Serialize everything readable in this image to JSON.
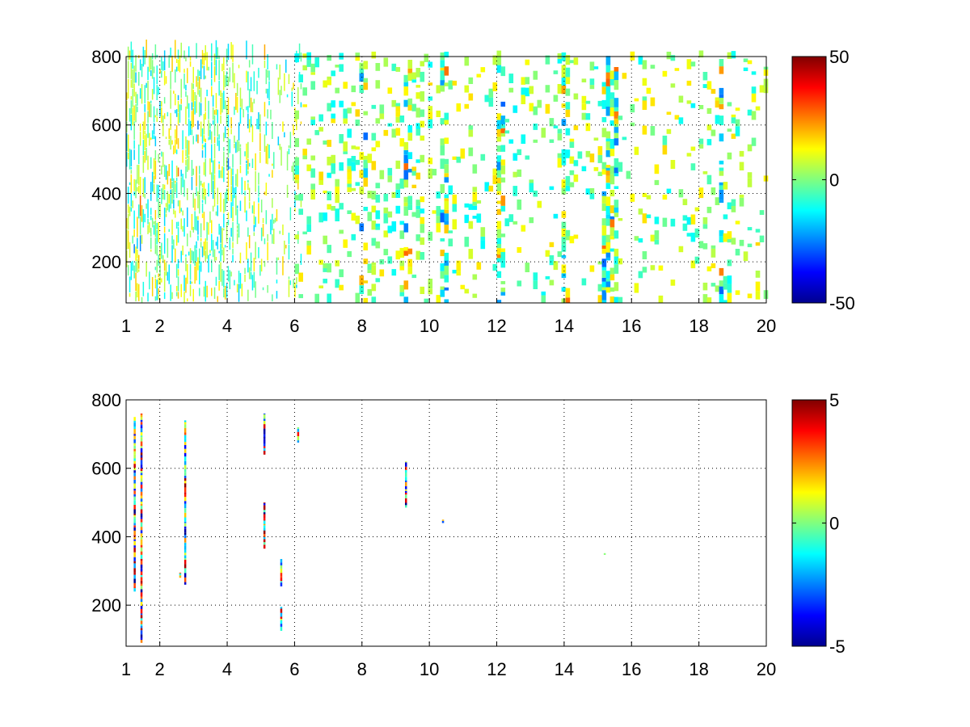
{
  "chart_data": [
    {
      "type": "heatmap",
      "title": "",
      "xlabel": "",
      "ylabel": "",
      "xlim": [
        1,
        20
      ],
      "ylim": [
        80,
        800
      ],
      "xticks": [
        1,
        2,
        4,
        6,
        8,
        10,
        12,
        14,
        16,
        18,
        20
      ],
      "xtick_labels": [
        "1",
        "2",
        "4",
        "6",
        "8",
        "10",
        "12",
        "14",
        "16",
        "18",
        "20"
      ],
      "yticks": [
        200,
        400,
        600,
        800
      ],
      "ytick_labels": [
        "200",
        "400",
        "600",
        "800"
      ],
      "grid": true,
      "colormap": "jet",
      "clim": [
        -50,
        50
      ],
      "colorbar_ticks": [
        -50,
        0,
        50
      ],
      "colorbar_labels": [
        "-50",
        "0",
        "50"
      ],
      "density": "dense",
      "columns": [
        {
          "x": 1.2,
          "density": 0.55,
          "strength": 0.35
        },
        {
          "x": 1.45,
          "density": 0.6,
          "strength": 0.4
        },
        {
          "x": 2.5,
          "density": 0.45,
          "strength": 0.35
        },
        {
          "x": 3.1,
          "density": 0.5,
          "strength": 0.4
        },
        {
          "x": 4.05,
          "density": 0.45,
          "strength": 0.3
        },
        {
          "x": 5.1,
          "density": 0.45,
          "strength": 0.5
        },
        {
          "x": 5.6,
          "density": 0.35,
          "strength": 0.3
        },
        {
          "x": 8.0,
          "density": 0.4,
          "strength": 0.3
        },
        {
          "x": 9.3,
          "density": 0.45,
          "strength": 0.55
        },
        {
          "x": 10.4,
          "density": 0.5,
          "strength": 0.35
        },
        {
          "x": 12.05,
          "density": 0.5,
          "strength": 0.35
        },
        {
          "x": 14.0,
          "density": 0.45,
          "strength": 0.3
        },
        {
          "x": 15.2,
          "density": 0.6,
          "strength": 0.45
        },
        {
          "x": 15.4,
          "density": 0.55,
          "strength": 0.4
        },
        {
          "x": 18.6,
          "density": 0.45,
          "strength": 0.3
        }
      ]
    },
    {
      "type": "heatmap",
      "title": "",
      "xlabel": "",
      "ylabel": "",
      "xlim": [
        1,
        20
      ],
      "ylim": [
        80,
        800
      ],
      "xticks": [
        1,
        2,
        4,
        6,
        8,
        10,
        12,
        14,
        16,
        18,
        20
      ],
      "xtick_labels": [
        "1",
        "2",
        "4",
        "6",
        "8",
        "10",
        "12",
        "14",
        "16",
        "18",
        "20"
      ],
      "yticks": [
        200,
        400,
        600,
        800
      ],
      "ytick_labels": [
        "200",
        "400",
        "600",
        "800"
      ],
      "grid": true,
      "colormap": "jet",
      "clim": [
        -5,
        5
      ],
      "colorbar_ticks": [
        -5,
        0,
        5
      ],
      "colorbar_labels": [
        "-5",
        "0",
        "5"
      ],
      "density": "sparse",
      "streaks": [
        {
          "x": 1.25,
          "y0": 240,
          "y1": 750
        },
        {
          "x": 1.45,
          "y0": 90,
          "y1": 760
        },
        {
          "x": 2.75,
          "y0": 260,
          "y1": 740
        },
        {
          "x": 2.6,
          "y0": 280,
          "y1": 295
        },
        {
          "x": 5.1,
          "y0": 365,
          "y1": 500
        },
        {
          "x": 5.1,
          "y0": 640,
          "y1": 760
        },
        {
          "x": 5.6,
          "y0": 255,
          "y1": 335
        },
        {
          "x": 5.6,
          "y0": 125,
          "y1": 195
        },
        {
          "x": 6.1,
          "y0": 675,
          "y1": 720
        },
        {
          "x": 9.3,
          "y0": 485,
          "y1": 620
        },
        {
          "x": 10.4,
          "y0": 440,
          "y1": 450
        },
        {
          "x": 15.2,
          "y0": 347,
          "y1": 352
        }
      ]
    }
  ]
}
